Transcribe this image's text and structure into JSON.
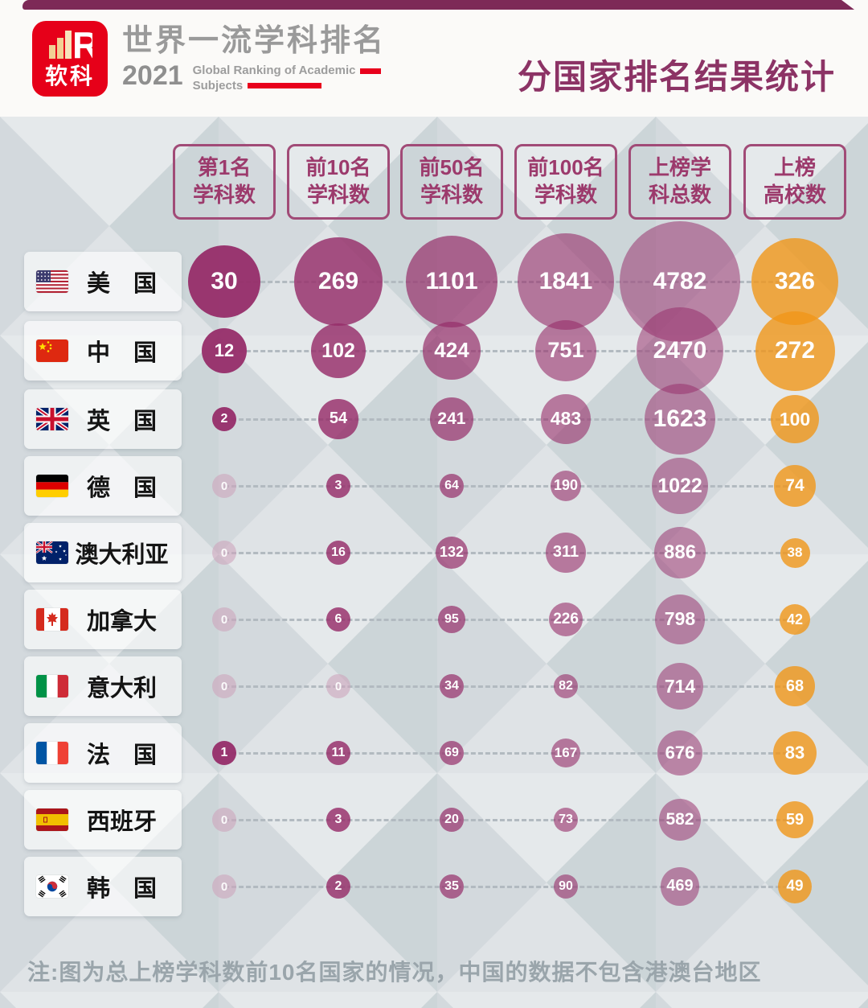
{
  "header": {
    "logo_brand": "软科",
    "title_cn": "世界一流学科排名",
    "year": "2021",
    "subtitle_en_line1": "Global Ranking of Academic",
    "subtitle_en_line2": "Subjects",
    "page_title": "分国家排名结果统计"
  },
  "footer": {
    "note": "注:图为总上榜学科数前10名国家的情况，中国的数据不包含港澳台地区"
  },
  "colors": {
    "theme_maroon": "#8c3365",
    "ribbon": "#7d2a57",
    "brand_red": "#e60019",
    "bubble_purple": "#962d69",
    "bubble_orange": "#f09619",
    "zero_bubble": "#cda5bc",
    "header_box_border": "#a14b77"
  },
  "chart_data": {
    "type": "bubble",
    "title": "分国家排名结果统计",
    "legend_position": "none",
    "grid": "dashed row guides",
    "columns": [
      {
        "label_line1": "第1名",
        "label_line2": "学科数"
      },
      {
        "label_line1": "前10名",
        "label_line2": "学科数"
      },
      {
        "label_line1": "前50名",
        "label_line2": "学科数"
      },
      {
        "label_line1": "前100名",
        "label_line2": "学科数"
      },
      {
        "label_line1": "上榜学",
        "label_line2": "科总数"
      },
      {
        "label_line1": "上榜",
        "label_line2": "高校数"
      }
    ],
    "rows": [
      {
        "country": "美　国",
        "flag": "us",
        "values": [
          30,
          269,
          1101,
          1841,
          4782,
          326
        ]
      },
      {
        "country": "中　国",
        "flag": "cn",
        "values": [
          12,
          102,
          424,
          751,
          2470,
          272
        ]
      },
      {
        "country": "英　国",
        "flag": "gb",
        "values": [
          2,
          54,
          241,
          483,
          1623,
          100
        ]
      },
      {
        "country": "德　国",
        "flag": "de",
        "values": [
          0,
          3,
          64,
          190,
          1022,
          74
        ]
      },
      {
        "country": "澳大利亚",
        "flag": "au",
        "values": [
          0,
          16,
          132,
          311,
          886,
          38
        ]
      },
      {
        "country": "加拿大",
        "flag": "ca",
        "values": [
          0,
          6,
          95,
          226,
          798,
          42
        ]
      },
      {
        "country": "意大利",
        "flag": "it",
        "values": [
          0,
          0,
          34,
          82,
          714,
          68
        ]
      },
      {
        "country": "法　国",
        "flag": "fr",
        "values": [
          1,
          11,
          69,
          167,
          676,
          83
        ]
      },
      {
        "country": "西班牙",
        "flag": "es",
        "values": [
          0,
          3,
          20,
          73,
          582,
          59
        ]
      },
      {
        "country": "韩　国",
        "flag": "kr",
        "values": [
          0,
          2,
          35,
          90,
          469,
          49
        ]
      }
    ]
  }
}
